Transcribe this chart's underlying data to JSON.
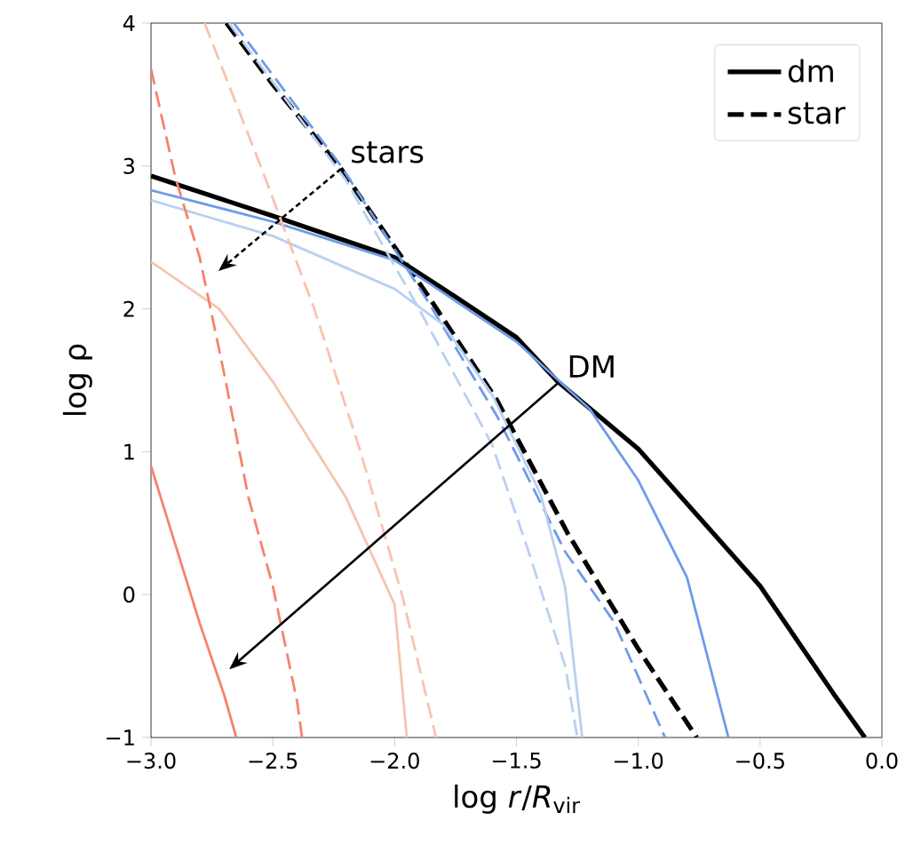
{
  "chart_data": {
    "type": "line",
    "xlabel": "log *r*/*R*$_{vir}$",
    "ylabel": "log ρ",
    "xlim": [
      -3,
      0
    ],
    "ylim": [
      -1,
      4
    ],
    "xticks": [
      {
        "value": -3,
        "label": "−3.0"
      },
      {
        "value": -2.5,
        "label": "−2.5"
      },
      {
        "value": -2,
        "label": "−2.0"
      },
      {
        "value": -1.5,
        "label": "−1.5"
      },
      {
        "value": -1,
        "label": "−1.0"
      },
      {
        "value": -0.5,
        "label": "−0.5"
      },
      {
        "value": 0,
        "label": "0.0"
      }
    ],
    "yticks": [
      {
        "value": -1,
        "label": "−1"
      },
      0,
      1,
      2,
      3,
      4
    ],
    "legend": "top right",
    "grid": false,
    "series": [
      {
        "name": "dm",
        "color": "#000000",
        "line_style": "solid",
        "x": [
          -3,
          -2.5,
          -2,
          -1.8,
          -1.5,
          -1.33,
          -1,
          -0.5,
          -0.2,
          -0.07
        ],
        "values": [
          2.93,
          2.65,
          2.36,
          2.14,
          1.8,
          1.49,
          1.02,
          0.06,
          -0.69,
          -1
        ]
      },
      {
        "name": "star",
        "color": "#000000",
        "line_style": "dashed",
        "x": [
          -2.69,
          -2.5,
          -2.22,
          -1.87,
          -1.58,
          -1.29,
          -1,
          -0.76
        ],
        "values": [
          4,
          3.57,
          2.98,
          2.11,
          1.36,
          0.43,
          -0.38,
          -1
        ]
      },
      {
        "color": "#6f9be8",
        "line_style": "solid",
        "x": [
          -3,
          -2.5,
          -2,
          -1.5,
          -1.2,
          -1,
          -0.8,
          -0.63
        ],
        "values": [
          2.83,
          2.61,
          2.34,
          1.77,
          1.3,
          0.8,
          0.12,
          -1
        ]
      },
      {
        "color": "#6f9be8",
        "line_style": "dashed",
        "x": [
          -2.66,
          -2.22,
          -1.87,
          -1.58,
          -1.3,
          -1.1,
          -0.89
        ],
        "values": [
          4,
          3,
          2.07,
          1.25,
          0.3,
          -0.19,
          -1
        ]
      },
      {
        "color": "#b9d0f0",
        "line_style": "solid",
        "x": [
          -3,
          -2.5,
          -2,
          -1.8,
          -1.6,
          -1.4,
          -1.3,
          -1.23
        ],
        "values": [
          2.76,
          2.51,
          2.14,
          1.89,
          1.4,
          0.7,
          0.05,
          -1
        ]
      },
      {
        "color": "#b9d0f0",
        "line_style": "dashed",
        "x": [
          -2.68,
          -2.2,
          -1.9,
          -1.6,
          -1.45,
          -1.3,
          -1.25
        ],
        "values": [
          4,
          2.9,
          2,
          1.05,
          0.3,
          -0.5,
          -1
        ]
      },
      {
        "color": "#f7c3b0",
        "line_style": "solid",
        "x": [
          -3,
          -2.72,
          -2.5,
          -2.2,
          -2,
          -1.95
        ],
        "values": [
          2.33,
          2,
          1.49,
          0.68,
          -0.07,
          -1
        ]
      },
      {
        "color": "#f7c3b0",
        "line_style": "dashed",
        "x": [
          -2.78,
          -2.55,
          -2.33,
          -2.14,
          -1.97,
          -1.83
        ],
        "values": [
          4,
          3,
          2,
          1,
          0,
          -1
        ]
      },
      {
        "color": "#f7826c",
        "line_style": "solid",
        "x": [
          -3,
          -2.9,
          -2.8,
          -2.7,
          -2.65
        ],
        "values": [
          0.9,
          0.35,
          -0.2,
          -0.7,
          -1
        ]
      },
      {
        "color": "#f7826c",
        "line_style": "dashed",
        "x": [
          -3,
          -2.9,
          -2.8,
          -2.7,
          -2.6,
          -2.5,
          -2.4,
          -2.38
        ],
        "values": [
          3.68,
          2.92,
          2.36,
          1.55,
          0.68,
          0.06,
          -0.75,
          -1
        ]
      }
    ],
    "annotations": [
      {
        "text": "stars",
        "x": -2.22,
        "y": 2.98
      },
      {
        "text": "DM",
        "x": -1.33,
        "y": 1.48
      }
    ]
  }
}
